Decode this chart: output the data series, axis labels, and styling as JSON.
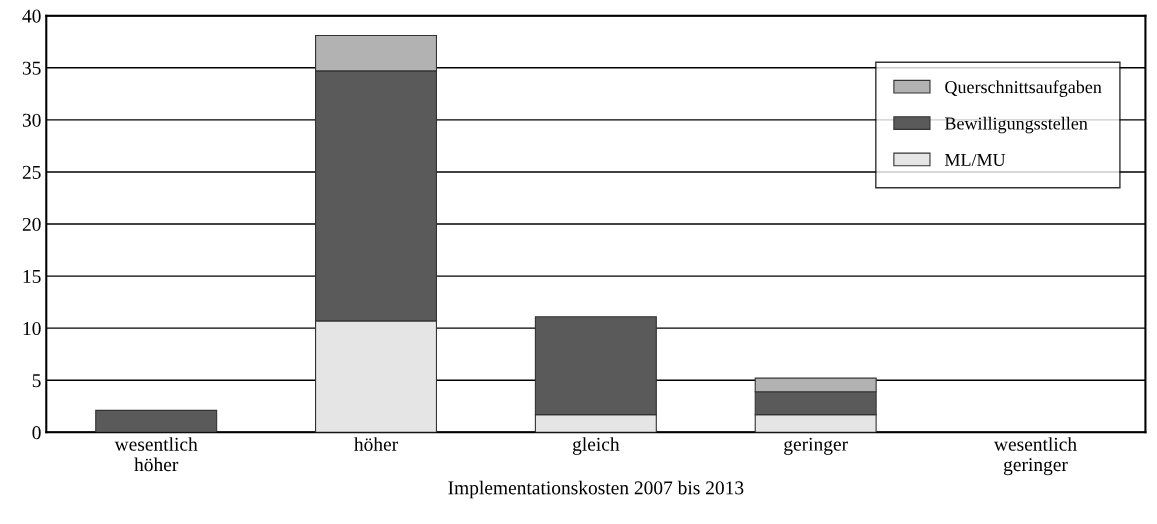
{
  "chart_data": {
    "type": "bar",
    "stacked": true,
    "xlabel": "Implementationskosten 2007 bis 2013",
    "categories": [
      "wesentlich\nhöher",
      "höher",
      "gleich",
      "geringer",
      "wesentlich\ngeringer"
    ],
    "series": [
      {
        "name": "ML/MU",
        "color": "#e5e5e5",
        "values": [
          null,
          10.7,
          1.7,
          1.7,
          null
        ]
      },
      {
        "name": "Bewilligungsstellen",
        "color": "#5a5a5a",
        "values": [
          2.1,
          24.0,
          9.4,
          2.2,
          null
        ]
      },
      {
        "name": "Querschnittsaufgaben",
        "color": "#b2b2b2",
        "values": [
          null,
          3.4,
          null,
          1.3,
          null
        ]
      }
    ],
    "ylim": [
      0,
      40
    ],
    "yticks": [
      0,
      5,
      10,
      15,
      20,
      25,
      30,
      35,
      40
    ],
    "grid": "y",
    "legend": "top right"
  }
}
